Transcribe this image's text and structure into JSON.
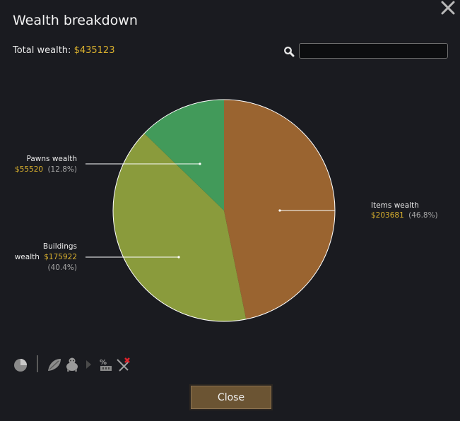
{
  "window": {
    "title": "Wealth breakdown",
    "close_icon": "close-x-icon"
  },
  "summary": {
    "total_label": "Total wealth:",
    "total_value": "$435123"
  },
  "search": {
    "icon": "search-icon",
    "value": "",
    "placeholder": ""
  },
  "colors": {
    "items": "#9a6430",
    "buildings": "#8a9b3c",
    "pawns": "#429a5a",
    "gold_text": "#d9b02e",
    "background": "#1a1b20"
  },
  "chart_data": {
    "type": "pie",
    "title": "",
    "total": 435123,
    "slices": [
      {
        "name": "Items wealth",
        "value": 203681,
        "percent_label": "(46.8%)",
        "value_label": "$203681",
        "color": "#9a6430"
      },
      {
        "name": "Buildings wealth",
        "value": 175922,
        "percent_label": "(40.4%)",
        "value_label": "$175922",
        "color": "#8a9b3c"
      },
      {
        "name": "Pawns wealth",
        "value": 55520,
        "percent_label": "(12.8%)",
        "value_label": "$55520",
        "color": "#429a5a"
      }
    ]
  },
  "labels": {
    "items_name": "Items wealth",
    "items_value": "$203681",
    "items_pct": "(46.8%)",
    "buildings_name_line1": "Buildings",
    "buildings_name_line2": "wealth",
    "buildings_value": "$175922",
    "buildings_pct": "(40.4%)",
    "pawns_name": "Pawns wealth",
    "pawns_value": "$55520",
    "pawns_pct": "(12.8%)"
  },
  "toolbar": {
    "icons": [
      "pie-chart-icon",
      "plants-icon",
      "animals-icon",
      "arrow-right-icon",
      "item-value-icon",
      "weapons-disabled-icon"
    ]
  },
  "footer": {
    "close_label": "Close"
  }
}
